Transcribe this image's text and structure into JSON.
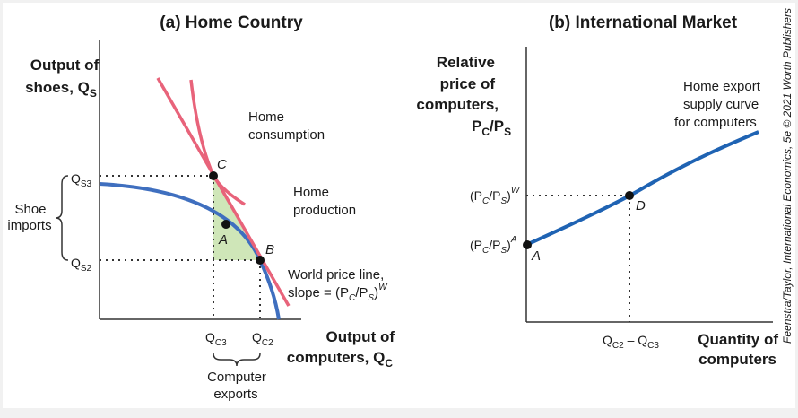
{
  "panel_a": {
    "title": "(a) Home Country",
    "y_axis_title": [
      "Output of",
      "shoes, Q"
    ],
    "y_axis_sub": "S",
    "x_axis_title": [
      "Output of",
      "computers, Q"
    ],
    "x_axis_sub": "C",
    "ticks": {
      "qs3": "Q",
      "qs3_sub": "S3",
      "qs2": "Q",
      "qs2_sub": "S2",
      "qc3": "Q",
      "qc3_sub": "C3",
      "qc2": "Q",
      "qc2_sub": "C2"
    },
    "shoe_imports": [
      "Shoe",
      "imports"
    ],
    "computer_exports": [
      "Computer",
      "exports"
    ],
    "home_consumption": [
      "Home",
      "consumption"
    ],
    "home_production": [
      "Home",
      "production"
    ],
    "world_price_line": [
      "World price line,",
      "slope = (P",
      "/P",
      ")"
    ],
    "wpl_sub_c": "C",
    "wpl_sub_s": "S",
    "wpl_sup": "W",
    "point_a": "A",
    "point_b": "B",
    "point_c": "C"
  },
  "panel_b": {
    "title": "(b) International Market",
    "y_axis_title": [
      "Relative",
      "price of",
      "computers,",
      "P",
      "/P"
    ],
    "y_sub_c": "C",
    "y_sub_s": "S",
    "x_axis_title": [
      "Quantity of",
      "computers"
    ],
    "supply_label": [
      "Home export",
      "supply curve",
      "for computers"
    ],
    "tick_w": [
      "(P",
      "/P",
      ")"
    ],
    "tick_a": [
      "(P",
      "/P",
      ")"
    ],
    "tick_sub_c": "C",
    "tick_sub_s": "S",
    "sup_w": "W",
    "sup_a": "A",
    "x_tick": [
      "Q",
      " – Q"
    ],
    "x_tick_sub1": "C2",
    "x_tick_sub2": "C3",
    "point_a": "A",
    "point_d": "D"
  },
  "credit": "Feenstra/Taylor, International Economics, 5e © 2021 Worth Publishers",
  "colors": {
    "ppf": "#3f6fbf",
    "pink": "#e8637a",
    "trade_triangle": "#cfe6b8",
    "supply": "#1f63b3"
  }
}
